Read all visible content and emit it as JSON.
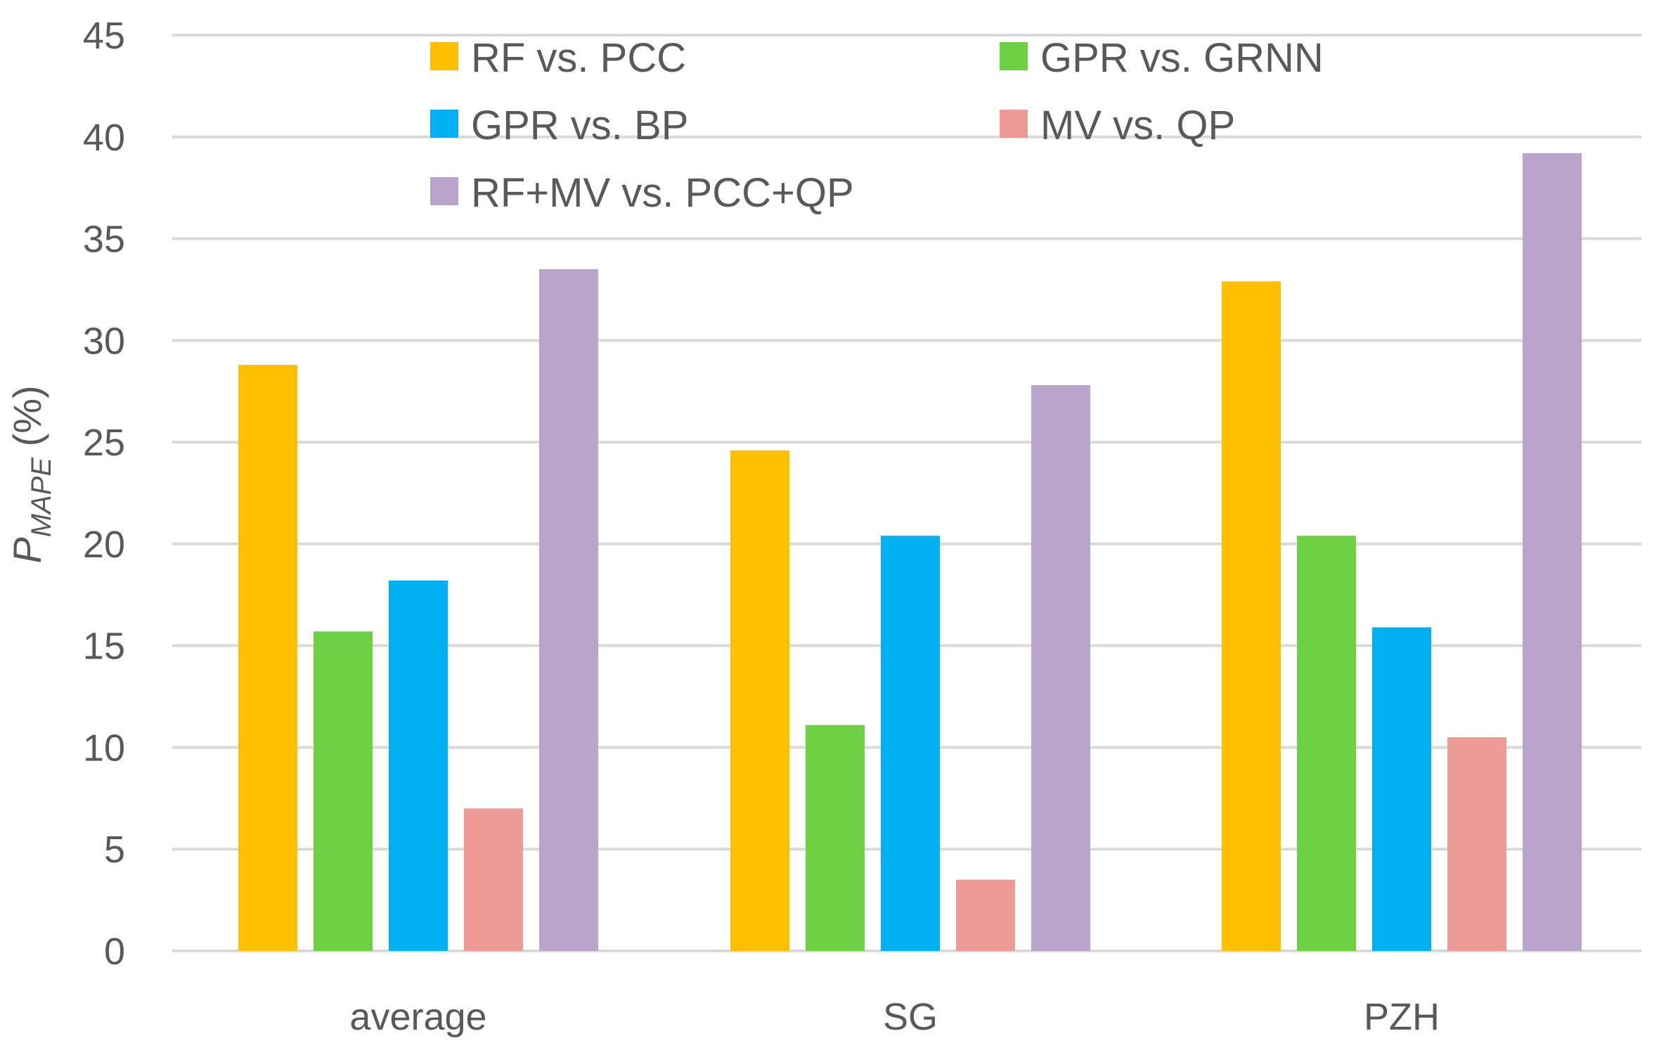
{
  "chart_data": {
    "type": "bar",
    "title": "",
    "xlabel": "",
    "ylabel": "P",
    "ylabel_subscript": "MAPE",
    "ylabel_suffix": " (%)",
    "ylim": [
      0,
      45
    ],
    "yticks": [
      0,
      5,
      10,
      15,
      20,
      25,
      30,
      35,
      40,
      45
    ],
    "grid": true,
    "legend_position": "top",
    "categories": [
      "average",
      "SG",
      "PZH"
    ],
    "series": [
      {
        "name": "RF vs. PCC",
        "color": "#FFC000",
        "values": [
          28.8,
          24.6,
          32.9
        ]
      },
      {
        "name": "GPR vs. GRNN",
        "color": "#6DD143",
        "values": [
          15.7,
          11.1,
          20.4
        ]
      },
      {
        "name": "GPR vs. BP",
        "color": "#00B0F0",
        "values": [
          18.2,
          20.4,
          15.9
        ]
      },
      {
        "name": "MV vs. QP",
        "color": "#EE9A97",
        "values": [
          7.0,
          3.5,
          10.5
        ]
      },
      {
        "name": "RF+MV vs. PCC+QP",
        "color": "#BBA4CB",
        "values": [
          33.5,
          27.8,
          39.2
        ]
      }
    ]
  }
}
